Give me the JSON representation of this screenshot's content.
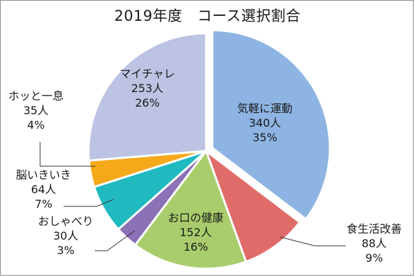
{
  "chart_data": {
    "type": "pie",
    "title": "2019年度　コース選択割合",
    "slices": [
      {
        "name": "気軽に運動",
        "count": "340人",
        "percent": "35%",
        "value": 340,
        "color": "#8db4e2"
      },
      {
        "name": "食生活改善",
        "count": "88人",
        "percent": "9%",
        "value": 88,
        "color": "#e06c6a"
      },
      {
        "name": "お口の健康",
        "count": "152人",
        "percent": "16%",
        "value": 152,
        "color": "#a9cd6c"
      },
      {
        "name": "おしゃべり",
        "count": "30人",
        "percent": "3%",
        "value": 30,
        "color": "#8b71b6"
      },
      {
        "name": "脳いきいき",
        "count": "64人",
        "percent": "7%",
        "value": 64,
        "color": "#20b9c0"
      },
      {
        "name": "ホッと一息",
        "count": "35人",
        "percent": "4%",
        "value": 35,
        "color": "#f5a91a"
      },
      {
        "name": "マイチャレ",
        "count": "253人",
        "percent": "26%",
        "value": 253,
        "color": "#bdc3e2"
      }
    ],
    "legend": "none",
    "exploded_slice": "気軽に運動"
  }
}
